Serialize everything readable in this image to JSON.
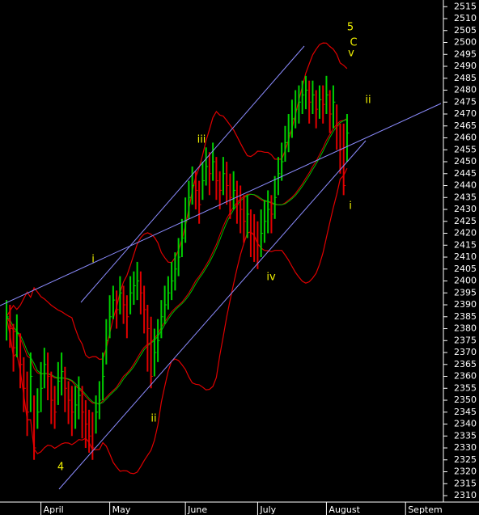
{
  "chart_data": {
    "type": "ohlc",
    "x": [
      0,
      1,
      2,
      3,
      4,
      5,
      6,
      7,
      8,
      9,
      10,
      11,
      12,
      13,
      14,
      15,
      16,
      17,
      18,
      19,
      20,
      21,
      22,
      23,
      24,
      25,
      26,
      27,
      28,
      29,
      30,
      31,
      32,
      33,
      34,
      35,
      36,
      37,
      38,
      39,
      40,
      41,
      42,
      43,
      44,
      45,
      46,
      47,
      48,
      49,
      50,
      51,
      52,
      53,
      54,
      55,
      56,
      57,
      58,
      59,
      60,
      61,
      62,
      63,
      64,
      65,
      66,
      67,
      68,
      69,
      70,
      71,
      72,
      73,
      74,
      75,
      76,
      77,
      78,
      79,
      80,
      81,
      82,
      83,
      84,
      85,
      86,
      87,
      88,
      89,
      90,
      91,
      92,
      93,
      94,
      95,
      96,
      97,
      98,
      99
    ],
    "high": [
      2392,
      2390,
      2382,
      2386,
      2378,
      2368,
      2362,
      2370,
      2352,
      2355,
      2366,
      2372,
      2370,
      2362,
      2356,
      2366,
      2370,
      2364,
      2358,
      2356,
      2356,
      2360,
      2356,
      2350,
      2346,
      2345,
      2352,
      2358,
      2370,
      2384,
      2394,
      2398,
      2396,
      2402,
      2398,
      2394,
      2402,
      2404,
      2408,
      2404,
      2398,
      2390,
      2385,
      2380,
      2384,
      2392,
      2398,
      2402,
      2408,
      2412,
      2418,
      2426,
      2435,
      2442,
      2448,
      2446,
      2442,
      2450,
      2456,
      2454,
      2458,
      2452,
      2446,
      2452,
      2450,
      2445,
      2446,
      2442,
      2440,
      2436,
      2436,
      2430,
      2428,
      2425,
      2430,
      2434,
      2438,
      2436,
      2444,
      2452,
      2458,
      2465,
      2470,
      2476,
      2480,
      2482,
      2484,
      2486,
      2484,
      2484,
      2480,
      2482,
      2482,
      2486,
      2480,
      2482,
      2474,
      2466,
      2466,
      2470
    ],
    "low": [
      2375,
      2372,
      2362,
      2368,
      2355,
      2345,
      2335,
      2345,
      2325,
      2338,
      2345,
      2355,
      2350,
      2340,
      2338,
      2348,
      2352,
      2345,
      2340,
      2335,
      2338,
      2342,
      2334,
      2330,
      2328,
      2325,
      2336,
      2342,
      2350,
      2365,
      2376,
      2384,
      2380,
      2386,
      2382,
      2376,
      2386,
      2390,
      2392,
      2386,
      2378,
      2362,
      2355,
      2360,
      2366,
      2376,
      2382,
      2388,
      2392,
      2396,
      2402,
      2410,
      2416,
      2426,
      2432,
      2430,
      2424,
      2434,
      2440,
      2436,
      2442,
      2434,
      2430,
      2436,
      2432,
      2426,
      2430,
      2424,
      2420,
      2416,
      2418,
      2410,
      2408,
      2405,
      2410,
      2416,
      2420,
      2420,
      2426,
      2436,
      2442,
      2450,
      2454,
      2460,
      2464,
      2466,
      2470,
      2472,
      2466,
      2470,
      2464,
      2468,
      2466,
      2470,
      2462,
      2464,
      2455,
      2445,
      2436,
      2450
    ],
    "close": [
      2385,
      2380,
      2372,
      2378,
      2365,
      2355,
      2345,
      2360,
      2330,
      2345,
      2355,
      2365,
      2360,
      2350,
      2345,
      2358,
      2362,
      2355,
      2350,
      2345,
      2348,
      2352,
      2345,
      2340,
      2335,
      2330,
      2345,
      2350,
      2360,
      2375,
      2385,
      2392,
      2388,
      2395,
      2390,
      2385,
      2395,
      2398,
      2400,
      2395,
      2388,
      2380,
      2360,
      2370,
      2375,
      2385,
      2390,
      2395,
      2400,
      2405,
      2410,
      2418,
      2425,
      2435,
      2440,
      2438,
      2432,
      2442,
      2448,
      2445,
      2450,
      2442,
      2438,
      2445,
      2440,
      2435,
      2438,
      2432,
      2430,
      2425,
      2428,
      2420,
      2418,
      2415,
      2420,
      2425,
      2430,
      2428,
      2435,
      2445,
      2450,
      2458,
      2462,
      2468,
      2472,
      2475,
      2478,
      2480,
      2475,
      2478,
      2472,
      2476,
      2474,
      2478,
      2470,
      2475,
      2465,
      2455,
      2440,
      2462
    ],
    "up_color": "#00d000",
    "down_color": "#e00000",
    "band_color": "#e00000",
    "average_color": "#00c000",
    "xlim": [
      -1.9,
      126.3
    ],
    "xticks": [
      {
        "value": 10,
        "label": "April"
      },
      {
        "value": 30,
        "label": "May"
      },
      {
        "value": 52,
        "label": "June"
      },
      {
        "value": 73,
        "label": "July"
      },
      {
        "value": 93,
        "label": "August"
      },
      {
        "value": 116,
        "label": "Septem"
      }
    ],
    "ylim": [
      2307.3,
      2517.8
    ],
    "yticks": [
      2310,
      2315,
      2320,
      2325,
      2330,
      2335,
      2340,
      2345,
      2350,
      2355,
      2360,
      2365,
      2370,
      2375,
      2380,
      2385,
      2390,
      2395,
      2400,
      2405,
      2410,
      2415,
      2420,
      2425,
      2430,
      2435,
      2440,
      2445,
      2450,
      2455,
      2460,
      2465,
      2470,
      2475,
      2480,
      2485,
      2490,
      2495,
      2500,
      2505,
      2510,
      2515
    ],
    "annotations": [
      "5",
      "C",
      "v",
      "ii",
      "iii",
      "i",
      "iv",
      "ii",
      "4",
      "i"
    ]
  }
}
